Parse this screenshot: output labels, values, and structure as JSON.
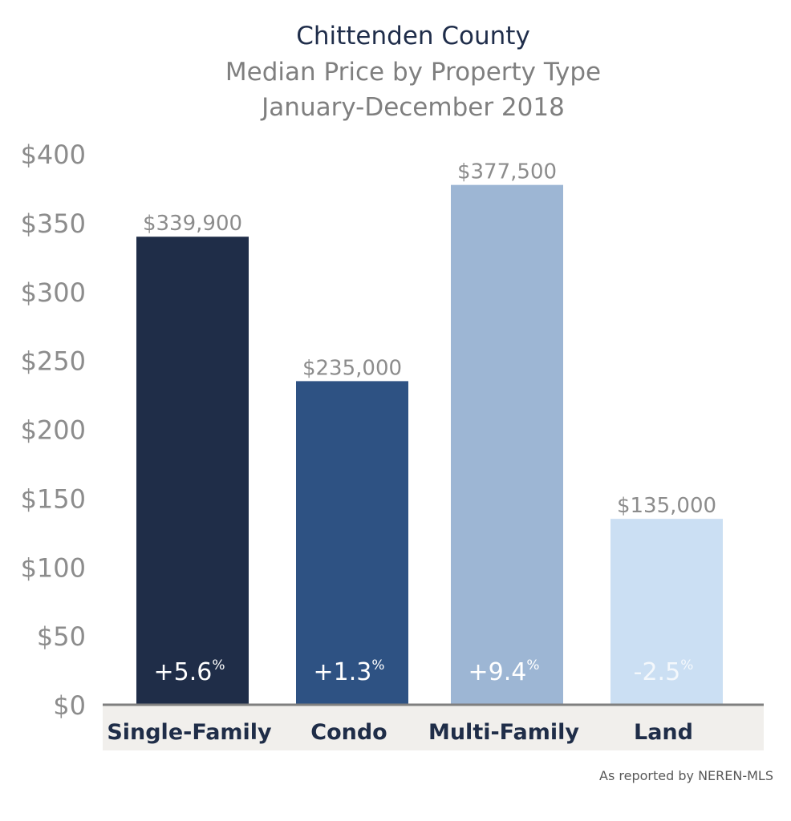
{
  "titles": {
    "line1": "Chittenden County",
    "line2": "Median Price by Property Type",
    "line3": "January-December 2018"
  },
  "source": "As reported by NEREN-MLS",
  "chart_data": {
    "type": "bar",
    "title": "Chittenden County",
    "subtitle": "Median Price by Property Type",
    "period": "January-December 2018",
    "xlabel": "",
    "ylabel": "",
    "categories": [
      "Single-Family",
      "Condo",
      "Multi-Family",
      "Land"
    ],
    "values": [
      339900,
      235000,
      377500,
      135000
    ],
    "value_labels": [
      "$339,900",
      "$235,000",
      "$377,500",
      "$135,000"
    ],
    "change_values": [
      5.6,
      1.3,
      9.4,
      -2.5
    ],
    "change_labels": [
      "+5.6",
      "+1.3",
      "+9.4",
      "-2.5"
    ],
    "change_unit": "%",
    "colors": [
      "#1f2d48",
      "#2e5283",
      "#9db6d4",
      "#cbdff3"
    ],
    "change_label_colors": [
      "#ffffff",
      "#ffffff",
      "#ffffff",
      "#f4f8fc"
    ],
    "ylim": [
      0,
      400000
    ],
    "yticks": [
      0,
      50000,
      100000,
      150000,
      200000,
      250000,
      300000,
      350000,
      400000
    ],
    "ytick_labels": [
      "$0",
      "$50",
      "$100",
      "$150",
      "$200",
      "$250",
      "$300",
      "$350",
      "$400"
    ],
    "grid": false,
    "legend": "none"
  }
}
